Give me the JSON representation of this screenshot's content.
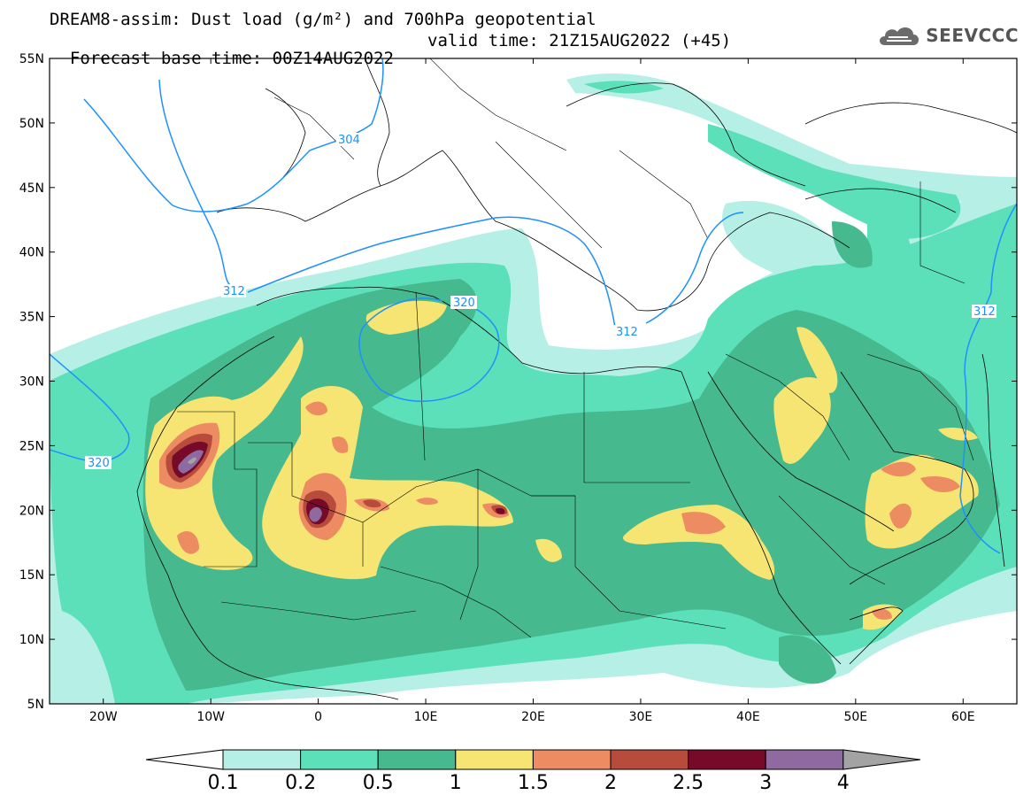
{
  "title": {
    "line1": "DREAM8-assim: Dust load (g/m²) and 700hPa geopotential",
    "base_time": "Forecast base time: 00Z14AUG2022",
    "valid_time": "valid time: 21Z15AUG2022 (+45)"
  },
  "logo": {
    "text": "SEEVCCC",
    "icon": "cloud-icon"
  },
  "map": {
    "lat_range": [
      5,
      55
    ],
    "lon_range": [
      -25,
      65
    ],
    "lat_ticks": [
      "55N",
      "50N",
      "45N",
      "40N",
      "35N",
      "30N",
      "25N",
      "20N",
      "15N",
      "10N",
      "5N"
    ],
    "lon_ticks": [
      "20W",
      "10W",
      "0",
      "10E",
      "20E",
      "30E",
      "40E",
      "50E",
      "60E"
    ],
    "contours": [
      {
        "label": "304",
        "color": "#1e90ff"
      },
      {
        "label": "312",
        "color": "#1e90ff"
      },
      {
        "label": "312",
        "color": "#1e90ff"
      },
      {
        "label": "312",
        "color": "#1e90ff"
      },
      {
        "label": "320",
        "color": "#1e90ff"
      },
      {
        "label": "320",
        "color": "#1e90ff"
      }
    ]
  },
  "colorbar": {
    "ticks": [
      "0.1",
      "0.2",
      "0.5",
      "1",
      "1.5",
      "2",
      "2.5",
      "3",
      "4"
    ],
    "colors": [
      "#b6efe5",
      "#5ce0b9",
      "#47b98f",
      "#f6e572",
      "#ed8b62",
      "#b84c3c",
      "#770a28",
      "#8e6aa0"
    ],
    "under_color": "#ffffff",
    "over_color": "#a3a3a3"
  }
}
